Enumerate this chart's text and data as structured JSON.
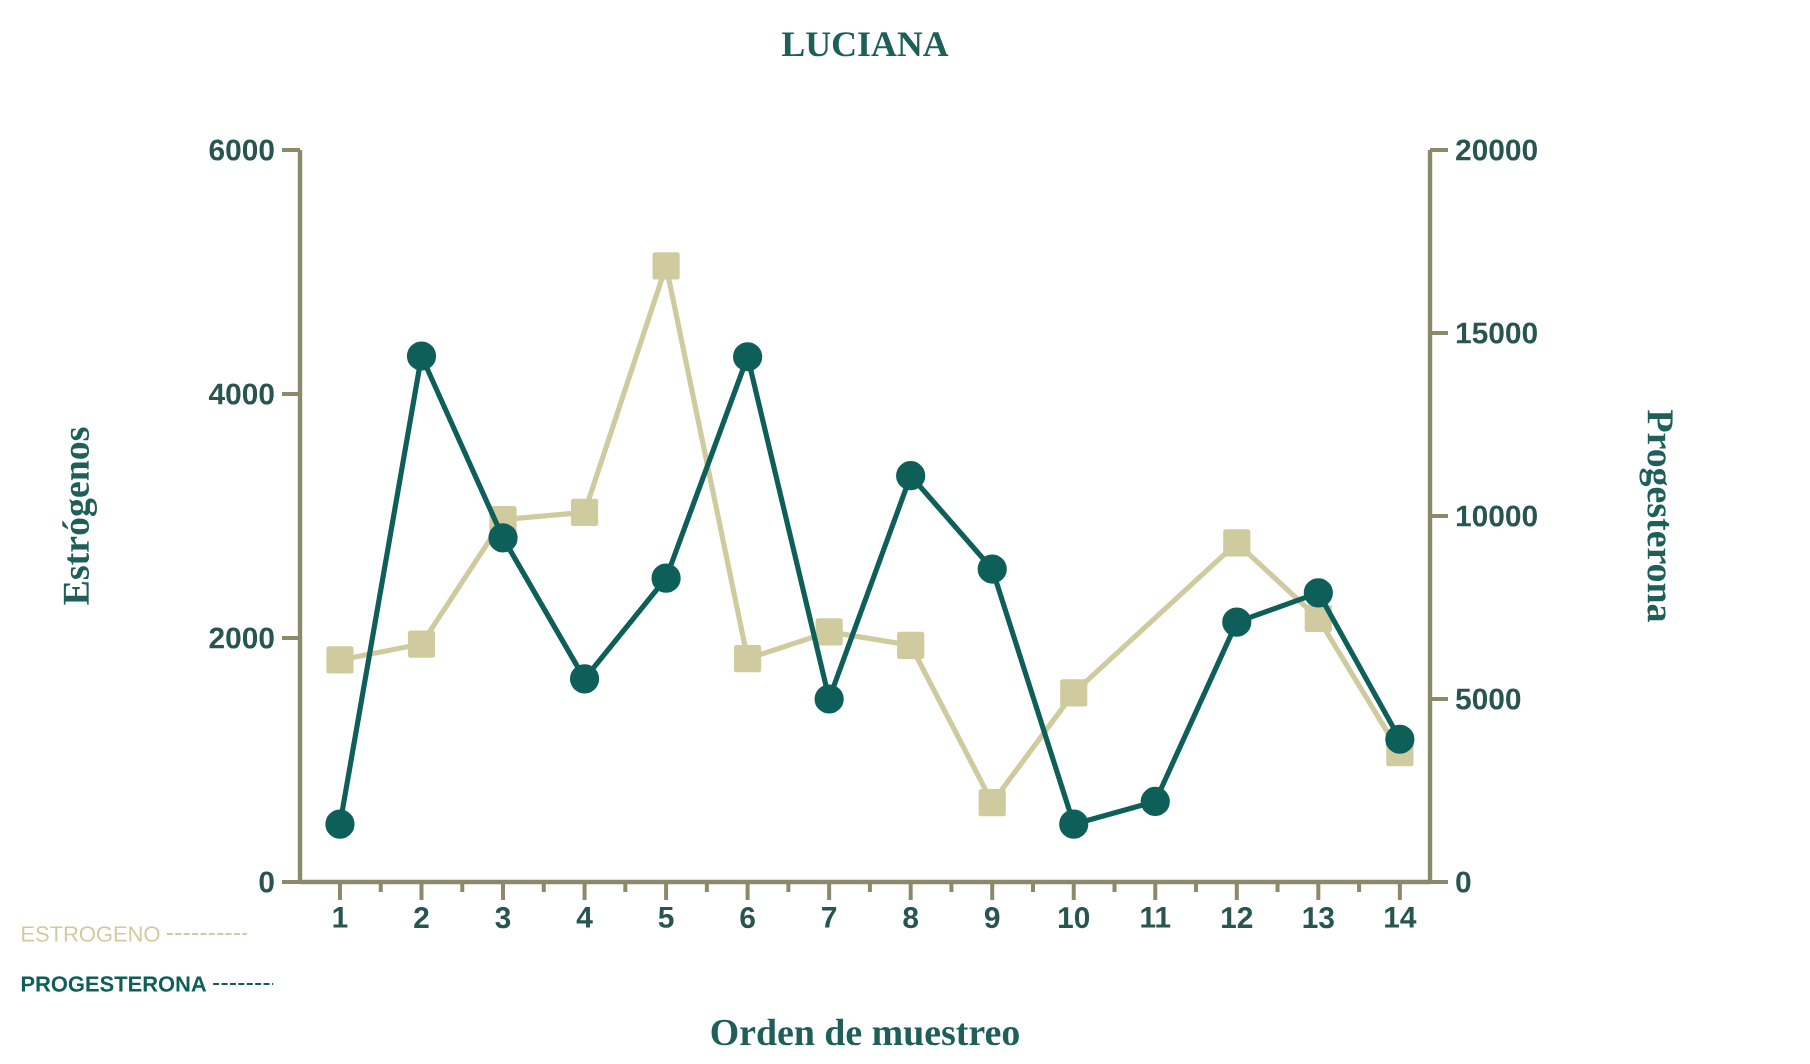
{
  "chart_data": {
    "type": "line",
    "title": "LUCIANA",
    "xlabel": "Orden de muestreo",
    "ylabel": "Estrógenos",
    "y2label": "Progesterona",
    "categories": [
      "1",
      "2",
      "3",
      "4",
      "5",
      "6",
      "7",
      "8",
      "9",
      "10",
      "11",
      "12",
      "13",
      "14"
    ],
    "ylim": [
      0,
      6000
    ],
    "yticks": [
      0,
      2000,
      4000,
      6000
    ],
    "y2lim": [
      0,
      20000
    ],
    "y2ticks": [
      0,
      5000,
      10000,
      15000,
      20000
    ],
    "legend": "bottom left",
    "grid": false,
    "series": [
      {
        "name": "ESTROGENO",
        "color": "#cfcb9f",
        "marker": "square",
        "values": [
          1820,
          1950,
          2970,
          3030,
          5050,
          1830,
          2050,
          1940,
          650,
          1550,
          null,
          2780,
          2160,
          1060
        ]
      },
      {
        "name": "PROGESTERONA",
        "color": "#0e5f5a",
        "marker": "circle",
        "axis": "y2",
        "values": [
          1580,
          14370,
          9400,
          5550,
          8300,
          14350,
          5000,
          11100,
          8550,
          1580,
          2200,
          7100,
          7900,
          3900
        ]
      }
    ]
  }
}
